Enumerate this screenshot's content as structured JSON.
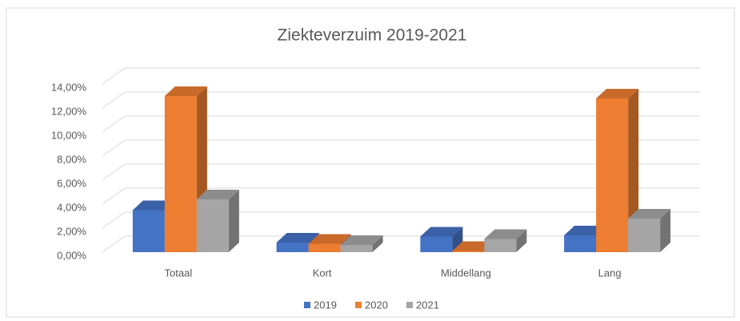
{
  "chart_data": {
    "type": "bar3d",
    "title": "Ziekteverzuim 2019-2021",
    "categories": [
      "Totaal",
      "Kort",
      "Middellang",
      "Lang"
    ],
    "series": [
      {
        "name": "2019",
        "color": "#4472c4",
        "values": [
          3.5,
          0.8,
          1.3,
          1.4
        ]
      },
      {
        "name": "2020",
        "color": "#ed7d31",
        "values": [
          13.0,
          0.7,
          0.1,
          12.8
        ]
      },
      {
        "name": "2021",
        "color": "#a5a5a5",
        "values": [
          4.4,
          0.6,
          1.1,
          2.8
        ]
      }
    ],
    "ylim": [
      0,
      14
    ],
    "yticks": [
      {
        "value": 0,
        "label": "0,00%"
      },
      {
        "value": 2,
        "label": "2,00%"
      },
      {
        "value": 4,
        "label": "4,00%"
      },
      {
        "value": 6,
        "label": "6,00%"
      },
      {
        "value": 8,
        "label": "8,00%"
      },
      {
        "value": 10,
        "label": "10,00%"
      },
      {
        "value": 12,
        "label": "12,00%"
      },
      {
        "value": 14,
        "label": "14,00%"
      }
    ],
    "grid": true,
    "legend": "bottom"
  }
}
